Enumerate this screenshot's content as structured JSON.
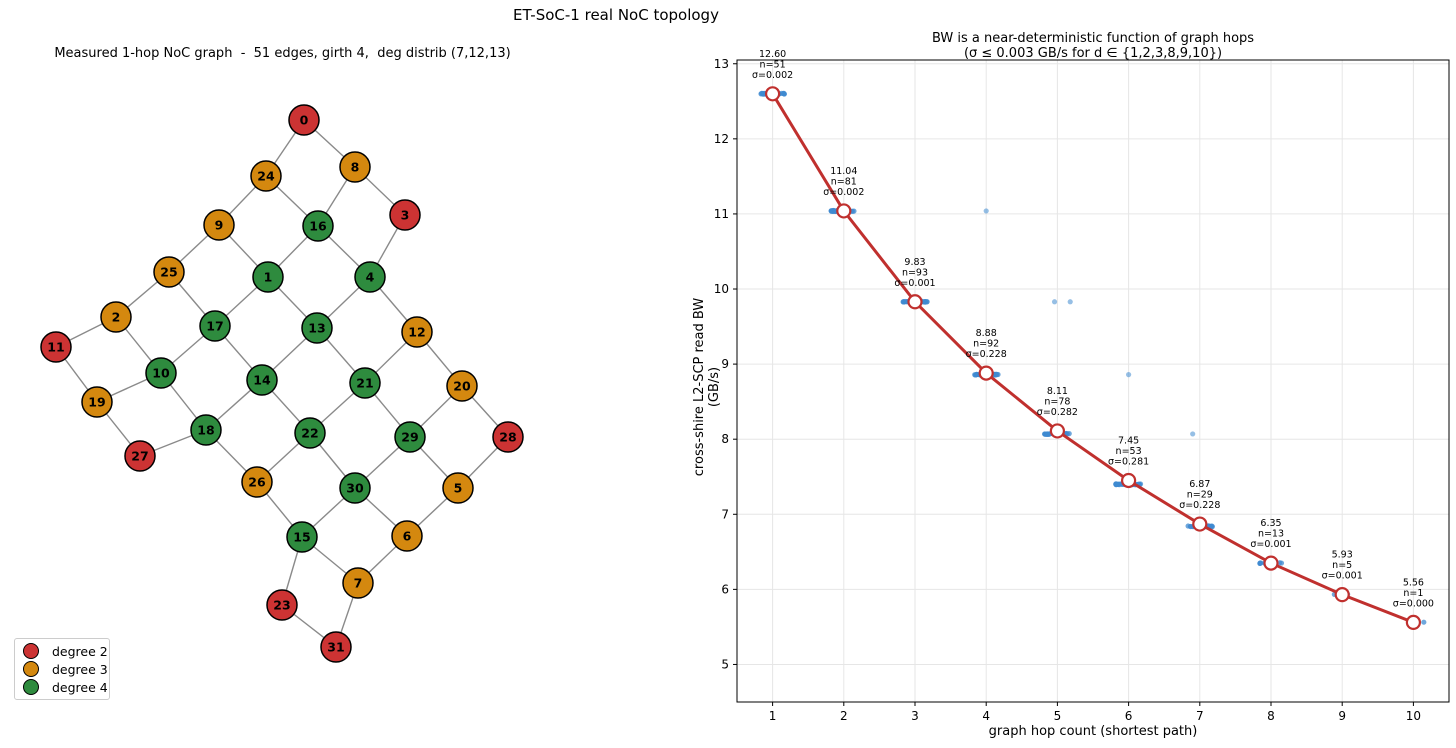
{
  "suptitle": "ET-SoC-1 real NoC topology",
  "graph": {
    "title": "Measured 1-hop NoC graph  -  51 edges, girth 4,  deg distrib (7,12,13)",
    "colors": {
      "2": "#cc3333",
      "3": "#d4880f",
      "4": "#2e8b3e"
    },
    "legend": [
      {
        "label": "degree 2",
        "color": "#cc3333"
      },
      {
        "label": "degree 3",
        "color": "#d4880f"
      },
      {
        "label": "degree 4",
        "color": "#2e8b3e"
      }
    ],
    "nodes": [
      {
        "id": "0",
        "degree": 2
      },
      {
        "id": "1",
        "degree": 4
      },
      {
        "id": "2",
        "degree": 3
      },
      {
        "id": "3",
        "degree": 2
      },
      {
        "id": "4",
        "degree": 4
      },
      {
        "id": "5",
        "degree": 3
      },
      {
        "id": "6",
        "degree": 3
      },
      {
        "id": "7",
        "degree": 3
      },
      {
        "id": "8",
        "degree": 3
      },
      {
        "id": "9",
        "degree": 3
      },
      {
        "id": "10",
        "degree": 4
      },
      {
        "id": "11",
        "degree": 2
      },
      {
        "id": "12",
        "degree": 3
      },
      {
        "id": "13",
        "degree": 4
      },
      {
        "id": "14",
        "degree": 4
      },
      {
        "id": "15",
        "degree": 4
      },
      {
        "id": "16",
        "degree": 4
      },
      {
        "id": "17",
        "degree": 4
      },
      {
        "id": "18",
        "degree": 4
      },
      {
        "id": "19",
        "degree": 3
      },
      {
        "id": "20",
        "degree": 3
      },
      {
        "id": "21",
        "degree": 4
      },
      {
        "id": "22",
        "degree": 4
      },
      {
        "id": "23",
        "degree": 2
      },
      {
        "id": "24",
        "degree": 3
      },
      {
        "id": "25",
        "degree": 3
      },
      {
        "id": "26",
        "degree": 3
      },
      {
        "id": "27",
        "degree": 2
      },
      {
        "id": "28",
        "degree": 2
      },
      {
        "id": "29",
        "degree": 4
      },
      {
        "id": "30",
        "degree": 4
      },
      {
        "id": "31",
        "degree": 2
      }
    ],
    "edges": [
      [
        "0",
        "24"
      ],
      [
        "0",
        "8"
      ],
      [
        "24",
        "9"
      ],
      [
        "24",
        "16"
      ],
      [
        "8",
        "16"
      ],
      [
        "8",
        "3"
      ],
      [
        "9",
        "25"
      ],
      [
        "9",
        "1"
      ],
      [
        "16",
        "1"
      ],
      [
        "16",
        "4"
      ],
      [
        "3",
        "4"
      ],
      [
        "25",
        "2"
      ],
      [
        "25",
        "17"
      ],
      [
        "1",
        "17"
      ],
      [
        "1",
        "13"
      ],
      [
        "4",
        "13"
      ],
      [
        "4",
        "12"
      ],
      [
        "2",
        "11"
      ],
      [
        "2",
        "10"
      ],
      [
        "17",
        "10"
      ],
      [
        "17",
        "14"
      ],
      [
        "13",
        "14"
      ],
      [
        "13",
        "21"
      ],
      [
        "12",
        "21"
      ],
      [
        "12",
        "20"
      ],
      [
        "11",
        "19"
      ],
      [
        "10",
        "19"
      ],
      [
        "10",
        "18"
      ],
      [
        "14",
        "18"
      ],
      [
        "14",
        "22"
      ],
      [
        "21",
        "22"
      ],
      [
        "21",
        "29"
      ],
      [
        "20",
        "29"
      ],
      [
        "20",
        "28"
      ],
      [
        "19",
        "27"
      ],
      [
        "27",
        "18"
      ],
      [
        "18",
        "26"
      ],
      [
        "22",
        "26"
      ],
      [
        "22",
        "30"
      ],
      [
        "29",
        "30"
      ],
      [
        "29",
        "5"
      ],
      [
        "28",
        "5"
      ],
      [
        "26",
        "15"
      ],
      [
        "30",
        "15"
      ],
      [
        "30",
        "6"
      ],
      [
        "5",
        "6"
      ],
      [
        "15",
        "7"
      ],
      [
        "15",
        "23"
      ],
      [
        "6",
        "7"
      ],
      [
        "7",
        "31"
      ],
      [
        "23",
        "31"
      ]
    ]
  },
  "chart_data": {
    "type": "scatter",
    "title": "BW is a near-deterministic function of graph hops",
    "subtitle": "(σ ≤ 0.003 GB/s for d ∈ {1,2,3,8,9,10})",
    "xlabel": "graph hop count (shortest path)",
    "ylabel": "cross-shire L2-SCP read BW (GB/s)",
    "xlim": [
      0.5,
      10.5
    ],
    "ylim": [
      4.5,
      13.05
    ],
    "xticks": [
      1,
      2,
      3,
      4,
      5,
      6,
      7,
      8,
      9,
      10
    ],
    "yticks": [
      5,
      6,
      7,
      8,
      9,
      10,
      11,
      12,
      13
    ],
    "grid": true,
    "colors": {
      "scatter": "#3f8ad0",
      "line": "#c0302e"
    },
    "series": [
      {
        "name": "",
        "x": [
          1,
          2,
          3,
          4,
          5,
          6,
          7,
          8,
          9,
          10
        ],
        "y": [
          12.6,
          11.04,
          9.83,
          8.88,
          8.11,
          7.45,
          6.87,
          6.35,
          5.93,
          5.56
        ]
      }
    ],
    "annotations": [
      {
        "x": 1,
        "lines": [
          "12.60",
          "n=51",
          "σ=0.002"
        ]
      },
      {
        "x": 2,
        "lines": [
          "11.04",
          "n=81",
          "σ=0.002"
        ]
      },
      {
        "x": 3,
        "lines": [
          "9.83",
          "n=93",
          "σ=0.001"
        ]
      },
      {
        "x": 4,
        "lines": [
          "8.88",
          "n=92",
          "σ=0.228"
        ]
      },
      {
        "x": 5,
        "lines": [
          "8.11",
          "n=78",
          "σ=0.282"
        ]
      },
      {
        "x": 6,
        "lines": [
          "7.45",
          "n=53",
          "σ=0.281"
        ]
      },
      {
        "x": 7,
        "lines": [
          "6.87",
          "n=29",
          "σ=0.228"
        ]
      },
      {
        "x": 8,
        "lines": [
          "6.35",
          "n=13",
          "σ=0.001"
        ]
      },
      {
        "x": 9,
        "lines": [
          "5.93",
          "n=5",
          "σ=0.001"
        ]
      },
      {
        "x": 10,
        "lines": [
          "5.56",
          "n=1",
          "σ=0.000"
        ]
      }
    ],
    "scatter_clusters": [
      {
        "x": 1,
        "y": 12.6,
        "n": 51
      },
      {
        "x": 2,
        "y": 11.04,
        "n": 81
      },
      {
        "x": 3,
        "y": 9.83,
        "n": 93
      },
      {
        "x": 4,
        "y": 8.86,
        "n": 92
      },
      {
        "x": 5,
        "y": 8.07,
        "n": 78
      },
      {
        "x": 6,
        "y": 7.4,
        "n": 53
      },
      {
        "x": 7,
        "y": 6.84,
        "n": 29
      },
      {
        "x": 8,
        "y": 6.35,
        "n": 13
      },
      {
        "x": 9,
        "y": 5.93,
        "n": 5
      },
      {
        "x": 10,
        "y": 5.56,
        "n": 1
      }
    ],
    "outliers": [
      {
        "x": 4.0,
        "y": 11.04
      },
      {
        "x": 4.96,
        "y": 9.83
      },
      {
        "x": 5.18,
        "y": 9.83
      },
      {
        "x": 6.0,
        "y": 8.86
      },
      {
        "x": 6.9,
        "y": 8.07
      }
    ]
  }
}
